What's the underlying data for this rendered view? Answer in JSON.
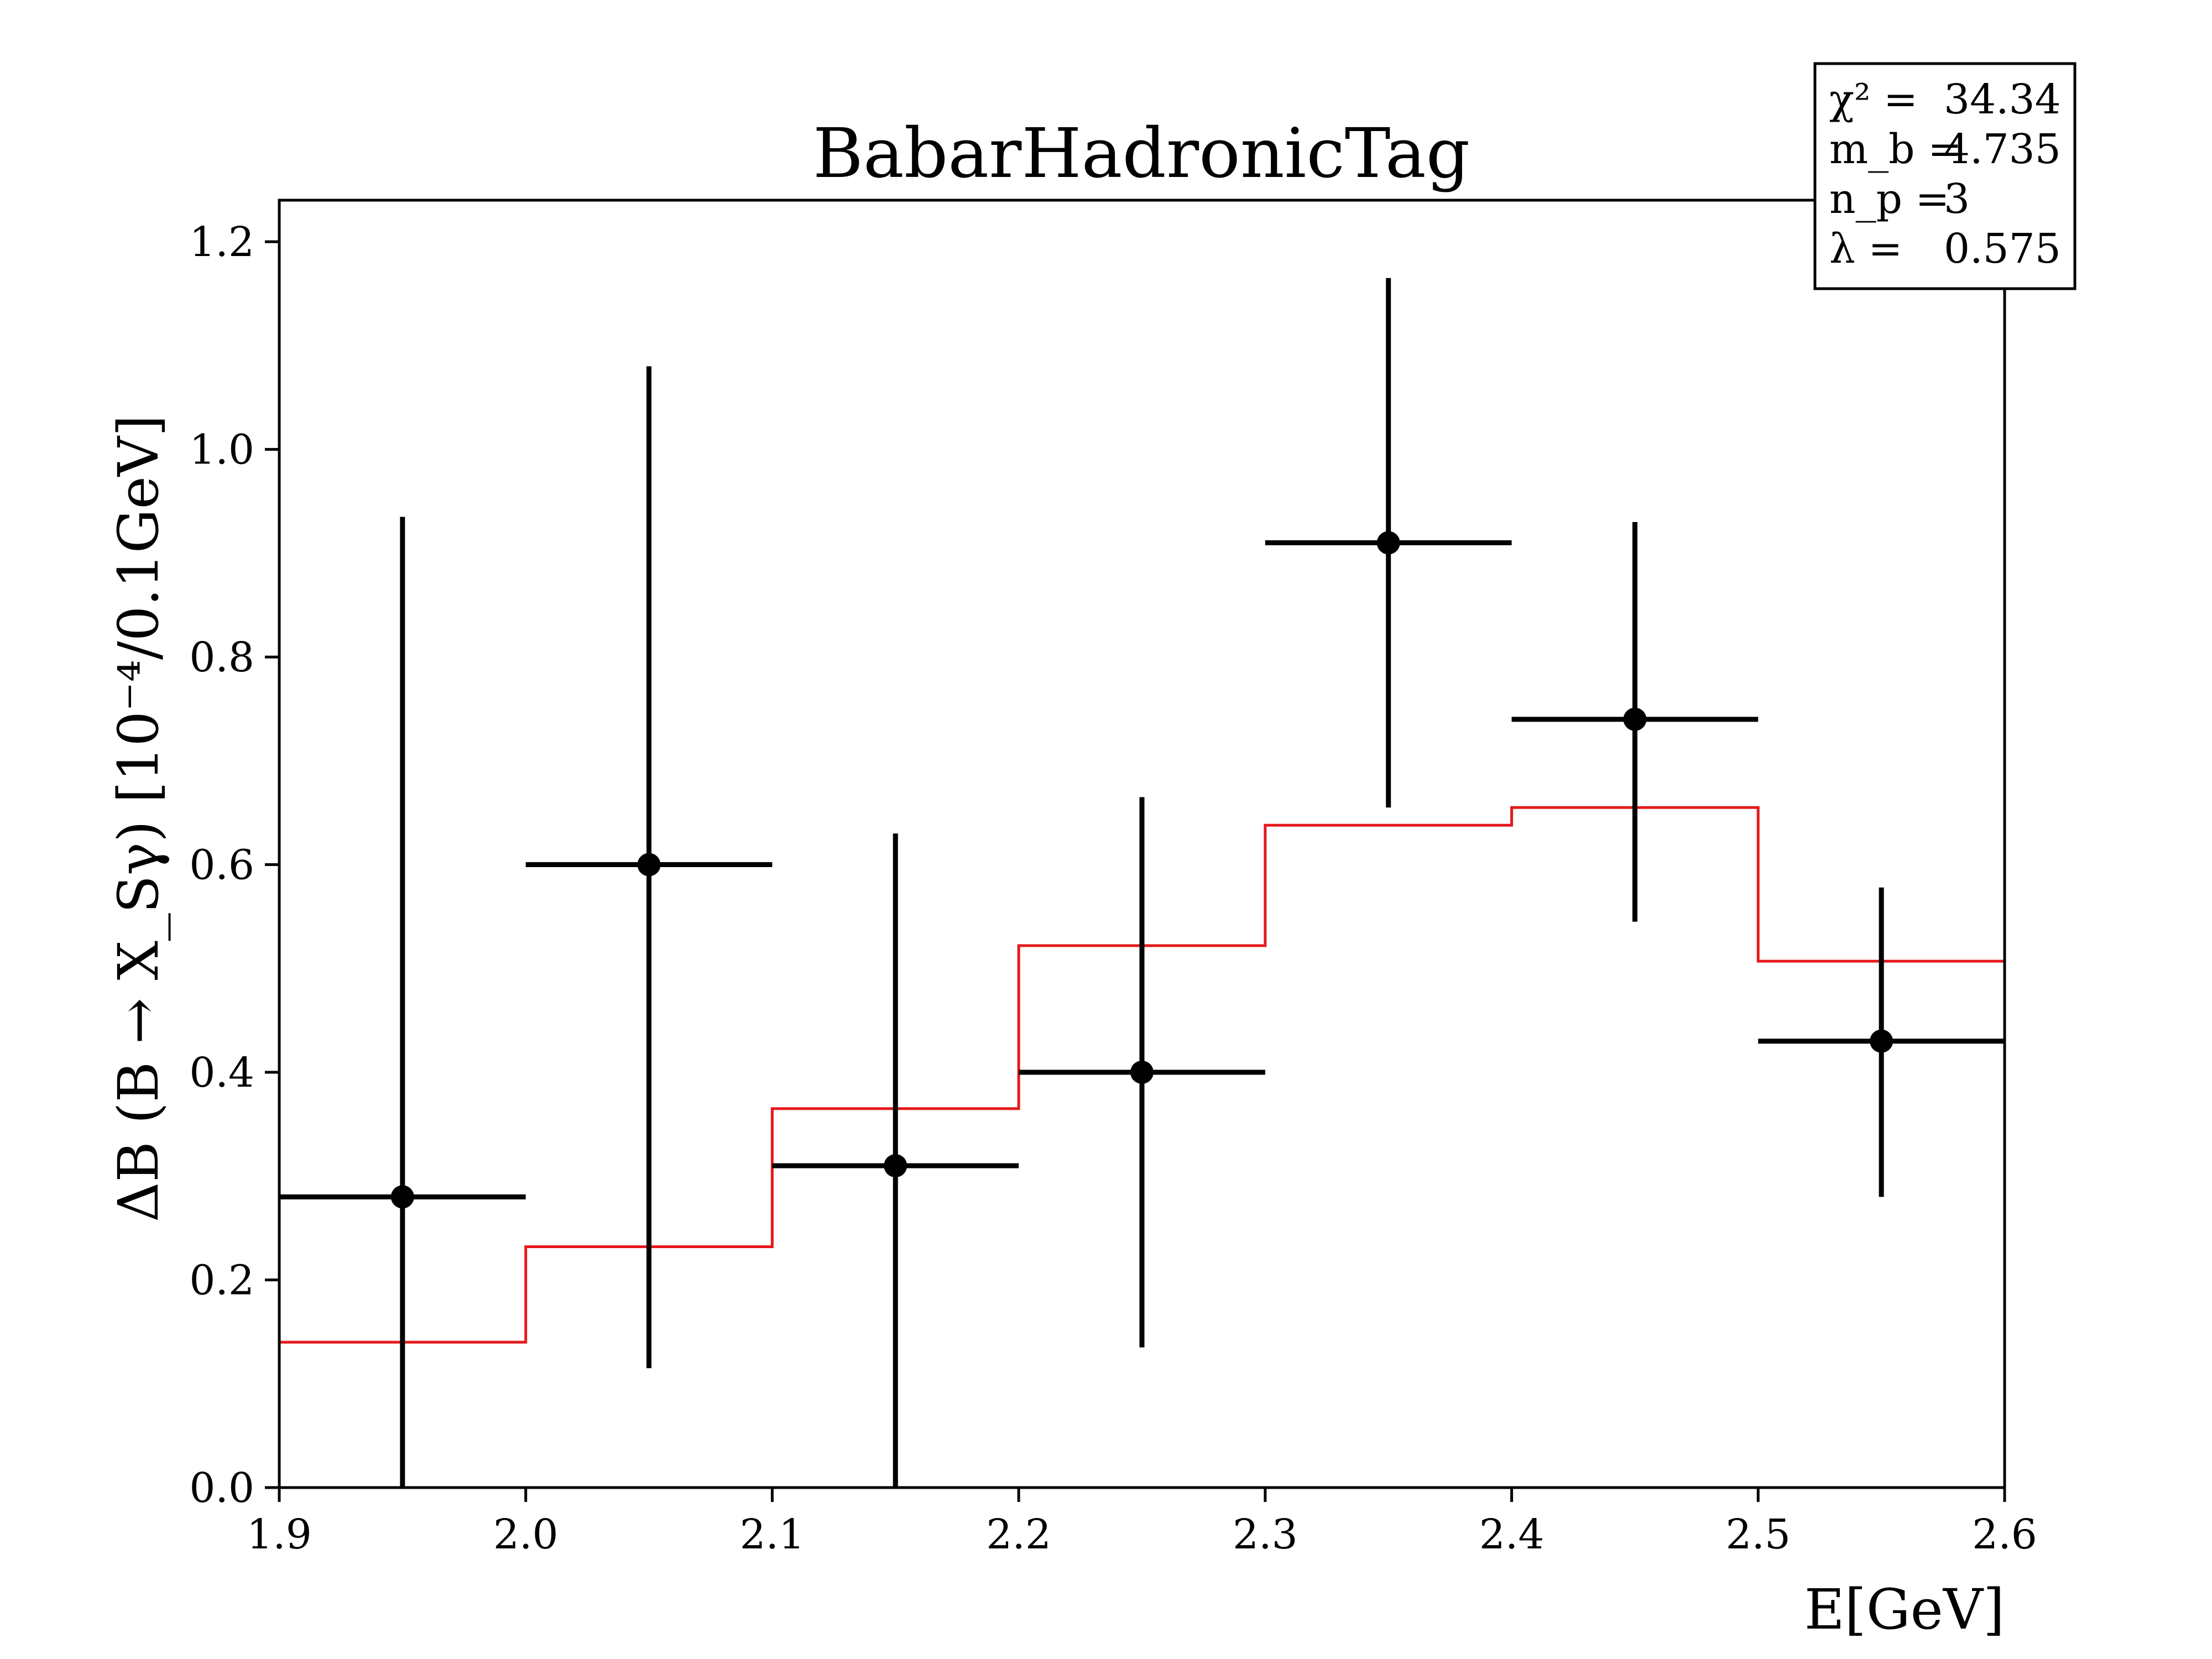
{
  "chart_data": {
    "type": "scatter",
    "title": "BabarHadronicTag",
    "xlabel": "E[GeV]",
    "ylabel": "ΔB (B → X_Sγ)  [10⁻⁴/0.1GeV]",
    "xlim": [
      1.9,
      2.6
    ],
    "ylim": [
      0.0,
      1.24
    ],
    "xticks": [
      "1.9",
      "2.0",
      "2.1",
      "2.2",
      "2.3",
      "2.4",
      "2.5",
      "2.6"
    ],
    "yticks": [
      "0.0",
      "0.2",
      "0.4",
      "0.6",
      "0.8",
      "1.0",
      "1.2"
    ],
    "grid": false,
    "series": [
      {
        "kind": "errorbar",
        "color": "#000000",
        "x": [
          1.95,
          2.05,
          2.15,
          2.25,
          2.35,
          2.45,
          2.55
        ],
        "xerr": [
          0.05,
          0.05,
          0.05,
          0.05,
          0.05,
          0.05,
          0.05
        ],
        "y": [
          0.28,
          0.6,
          0.31,
          0.4,
          0.91,
          0.74,
          0.43
        ],
        "y_low": [
          0.0,
          0.115,
          0.0,
          0.135,
          0.655,
          0.545,
          0.28
        ],
        "y_high": [
          0.935,
          1.08,
          0.63,
          0.665,
          1.165,
          0.93,
          0.578
        ]
      },
      {
        "kind": "step",
        "color": "#e41a1c",
        "bin_edges": [
          1.9,
          2.0,
          2.1,
          2.2,
          2.3,
          2.4,
          2.5,
          2.6
        ],
        "values": [
          0.14,
          0.232,
          0.365,
          0.522,
          0.638,
          0.655,
          0.507
        ]
      }
    ],
    "annotation_box": {
      "placement": "top-right",
      "lines": [
        {
          "label": "χ² =",
          "value": "34.34"
        },
        {
          "label": "m_b =",
          "value": "4.735"
        },
        {
          "label": "n_p =",
          "value": "3"
        },
        {
          "label": "λ =",
          "value": "0.575"
        }
      ]
    }
  }
}
